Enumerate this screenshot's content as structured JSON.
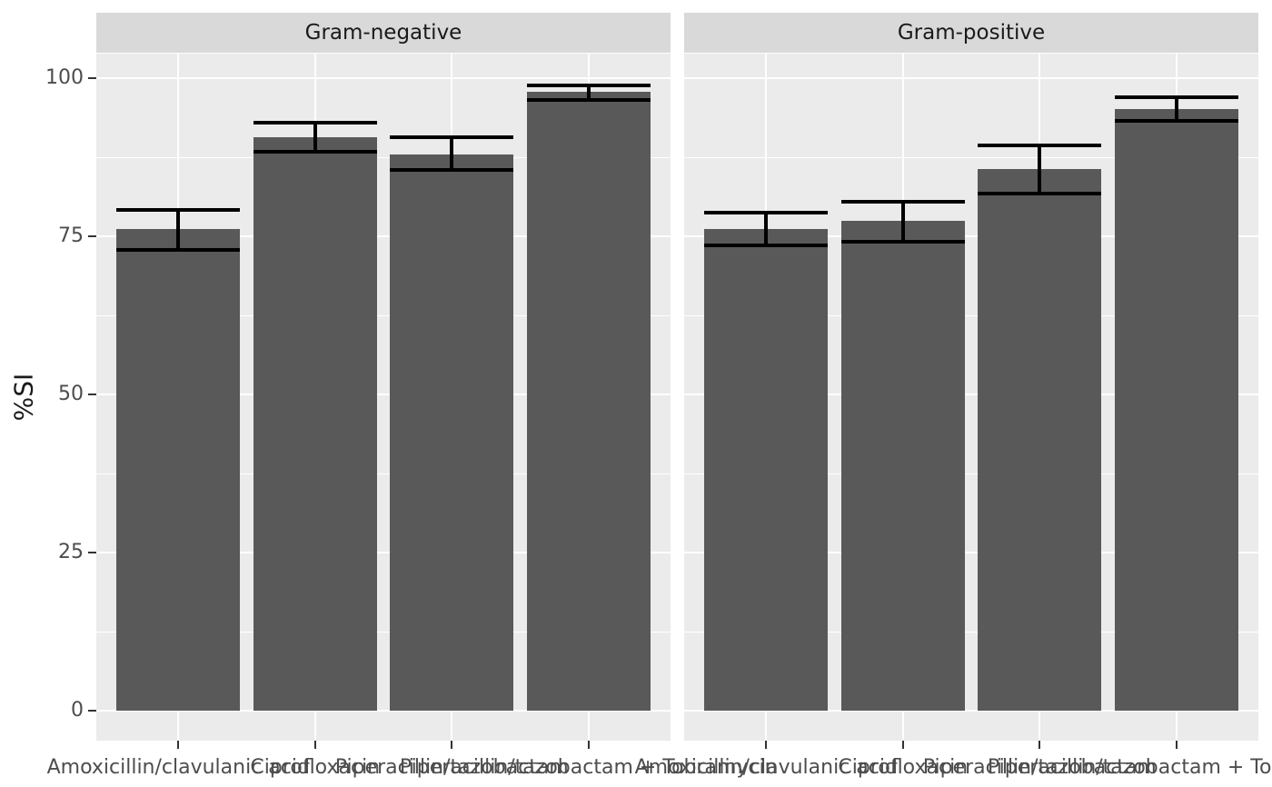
{
  "chart_data": {
    "type": "bar",
    "faceted": true,
    "title": "",
    "xlabel": "",
    "ylabel": "%SI",
    "yticks": [
      0,
      25,
      50,
      75,
      100
    ],
    "minor_yticks": [
      12.5,
      37.5,
      62.5,
      87.5
    ],
    "ylim_displayed": [
      -5,
      104
    ],
    "grid": true,
    "legend": "none",
    "error_bars": true,
    "categories": [
      "Amoxicillin/clavulanic acid",
      "Ciprofloxacin",
      "Piperacillin/tazobactam",
      "Piperacillin/tazobactam + Tobramycin"
    ],
    "facets": [
      {
        "label": "Gram-negative",
        "values": [
          76.1,
          90.7,
          88.0,
          97.9
        ],
        "ci_lower": [
          72.9,
          88.4,
          85.5,
          96.6
        ],
        "ci_upper": [
          79.2,
          92.9,
          90.7,
          98.9
        ]
      },
      {
        "label": "Gram-positive",
        "values": [
          76.2,
          77.4,
          85.7,
          95.1
        ],
        "ci_lower": [
          73.6,
          74.1,
          81.7,
          93.3
        ],
        "ci_upper": [
          78.7,
          80.4,
          89.4,
          97.0
        ]
      }
    ]
  },
  "colors": {
    "bar_fill": "#595959",
    "panel_bg": "#EBEBEB",
    "strip_bg": "#D9D9D9",
    "grid": "#FFFFFF",
    "axis_text": "#4D4D4D",
    "strip_text": "#1A1A1A",
    "axis_title": "#1A1A1A",
    "errorbar": "#000000",
    "tick_mark": "#333333",
    "plot_bg": "#FFFFFF"
  }
}
